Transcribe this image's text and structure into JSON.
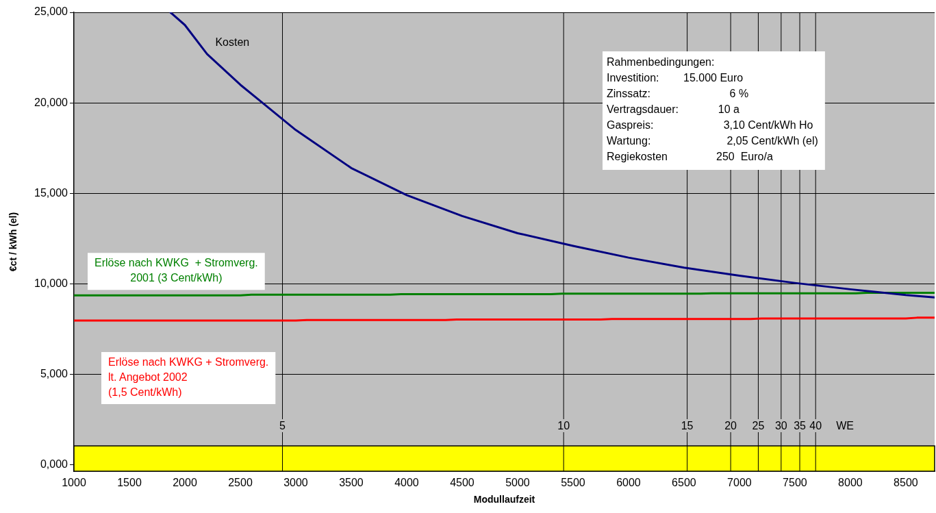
{
  "chart_data": {
    "type": "line",
    "xlabel": "Modullaufzeit",
    "ylabel": "€ct / kWh (el)",
    "xlim": [
      1000,
      8760
    ],
    "xticks": [
      1000,
      1500,
      2000,
      2500,
      3000,
      3500,
      4000,
      4500,
      5000,
      5500,
      6000,
      6500,
      7000,
      7500,
      8000,
      8500
    ],
    "ylim": [
      -0.35,
      25
    ],
    "yticks": [
      {
        "value": 0,
        "label": "0,000"
      },
      {
        "value": 5,
        "label": "5,000"
      },
      {
        "value": 10,
        "label": "10,000"
      },
      {
        "value": 15,
        "label": "15,000"
      },
      {
        "value": 20,
        "label": "20,000"
      },
      {
        "value": 25,
        "label": "25,000"
      }
    ],
    "grid": "y",
    "legend": false,
    "marker": "none",
    "line_style": "solid",
    "series": [
      {
        "name": "Kosten",
        "color": "#000080",
        "x": [
          1870,
          2000,
          2200,
          2500,
          2700,
          3000,
          3500,
          4000,
          4500,
          5000,
          5500,
          6000,
          6500,
          7000,
          7500,
          8000,
          8500,
          8760
        ],
        "values": [
          25.0,
          24.3,
          22.7,
          21.0,
          20.0,
          18.5,
          16.4,
          14.9,
          13.75,
          12.8,
          12.1,
          11.45,
          10.9,
          10.45,
          10.05,
          9.7,
          9.38,
          9.25
        ]
      },
      {
        "name": "Erlöse nach KWKG  + Stromverg.\n2001 (3 Cent/kWh)",
        "color": "#008000",
        "x": [
          1000,
          2500,
          2600,
          3850,
          3950,
          5300,
          5400,
          6650,
          6750,
          8050,
          8150,
          8760
        ],
        "values": [
          9.36,
          9.36,
          9.4,
          9.4,
          9.43,
          9.43,
          9.46,
          9.46,
          9.48,
          9.48,
          9.51,
          9.51
        ]
      },
      {
        "name": "Erlöse nach KWKG + Stromverg.\nlt. Angebot 2002\n(1,5 Cent/kWh)",
        "color": "#ff0000",
        "x": [
          1000,
          3000,
          3100,
          4350,
          4450,
          5750,
          5850,
          7100,
          7200,
          8500,
          8600,
          8760
        ],
        "values": [
          7.97,
          7.97,
          8.0,
          8.0,
          8.03,
          8.03,
          8.06,
          8.06,
          8.09,
          8.09,
          8.13,
          8.13
        ]
      }
    ],
    "bands": [
      {
        "axis": "y",
        "from": -0.35,
        "to": 1.05,
        "color": "#ffff00"
      }
    ],
    "ref_lines": [
      {
        "axis": "x",
        "value": 2880,
        "color": "#000000"
      },
      {
        "axis": "x",
        "value": 5415,
        "color": "#000000"
      },
      {
        "axis": "x",
        "value": 6529,
        "color": "#000000"
      },
      {
        "axis": "x",
        "value": 6921,
        "color": "#000000"
      },
      {
        "axis": "x",
        "value": 7170,
        "color": "#000000"
      },
      {
        "axis": "x",
        "value": 7376,
        "color": "#000000"
      },
      {
        "axis": "x",
        "value": 7544,
        "color": "#000000"
      },
      {
        "axis": "x",
        "value": 7687,
        "color": "#000000"
      }
    ],
    "annotations": [
      "Rahmenbedingungen:",
      "Investition:        15.000 Euro",
      "Zinssatz:                          6 %",
      "Vertragsdauer:             10 a",
      "Gaspreis:                       3,10 Cent/kWh Ho",
      "Wartung:                         2,05 Cent/kWh (el)",
      "Regiekosten                250  Euro/a",
      "5",
      "10",
      "15",
      "20",
      "25",
      "30",
      "35",
      "40",
      "WE"
    ]
  }
}
